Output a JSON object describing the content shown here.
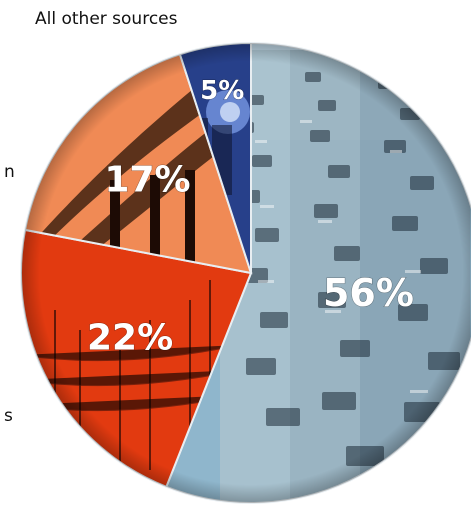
{
  "header": {
    "top_label": "All other sources"
  },
  "side_fragments": [
    "n",
    "s"
  ],
  "colors": {
    "traffic": "#8fb6cc",
    "road": "#9fb7c5",
    "sky_orange": "#f08a55",
    "industry_dark": "#2a1408",
    "power_red": "#e23a10",
    "night_blue": "#27408a",
    "edge": "#e8eef2",
    "text": "#111111"
  },
  "icons": [
    "traffic-photo",
    "smokestack-photo",
    "power-line-photo",
    "night-sky-photo"
  ],
  "chart_data": {
    "type": "pie",
    "title": "",
    "categories": [
      "",
      "",
      "",
      ""
    ],
    "values": [
      56,
      22,
      17,
      5
    ],
    "labels": [
      "56%",
      "22%",
      "17%",
      "5%"
    ],
    "legend": "none"
  }
}
